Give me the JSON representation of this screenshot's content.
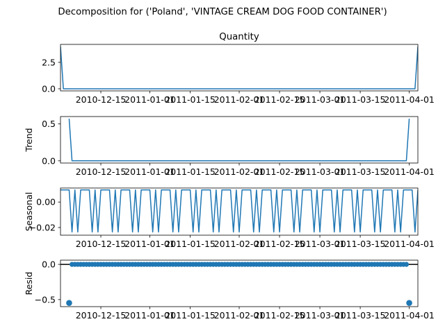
{
  "suptitle": "Decomposition for ('Poland', 'VINTAGE CREAM DOG FOOD CONTAINER')",
  "chart_data": {
    "type": "line",
    "x_range": [
      "2010-12-01",
      "2011-04-04"
    ],
    "x_ticks": [
      {
        "date": "2010-12-15",
        "label": "2010-12-15"
      },
      {
        "date": "2011-01-01",
        "label": "2011-01-01"
      },
      {
        "date": "2011-01-15",
        "label": "2011-01-15"
      },
      {
        "date": "2011-02-01",
        "label": "2011-02-01"
      },
      {
        "date": "2011-02-15",
        "label": "2011-02-15"
      },
      {
        "date": "2011-03-01",
        "label": "2011-03-01"
      },
      {
        "date": "2011-03-15",
        "label": "2011-03-15"
      },
      {
        "date": "2011-04-01",
        "label": "2011-04-01"
      }
    ],
    "line_color": "#1f77b4",
    "panels": [
      {
        "key": "observed",
        "title": "Quantity",
        "ylabel": "",
        "style": "line",
        "ylim": [
          -0.2,
          4.2
        ],
        "yticks": [
          {
            "v": 0.0,
            "label": "0.0"
          },
          {
            "v": 2.5,
            "label": "2.5"
          }
        ],
        "points": [
          [
            "2010-12-01",
            4
          ],
          [
            "2010-12-02",
            0
          ],
          [
            "2011-04-03",
            0
          ],
          [
            "2011-04-04",
            4
          ]
        ]
      },
      {
        "key": "trend",
        "title": "",
        "ylabel": "Trend",
        "style": "line",
        "ylim": [
          -0.03,
          0.6
        ],
        "yticks": [
          {
            "v": 0.0,
            "label": "0.0"
          },
          {
            "v": 0.5,
            "label": "0.5"
          }
        ],
        "points": [
          [
            "2010-12-04",
            0.571
          ],
          [
            "2010-12-05",
            0
          ],
          [
            "2011-03-31",
            0
          ],
          [
            "2011-04-01",
            0.571
          ]
        ]
      },
      {
        "key": "seasonal",
        "title": "",
        "ylabel": "Seasonal",
        "style": "line",
        "ylim": [
          -0.026,
          0.011
        ],
        "yticks": [
          {
            "v": 0.0,
            "label": "0.00"
          },
          {
            "v": -0.02,
            "label": "−0.02"
          }
        ],
        "period_days": 7,
        "weekly_pattern": [
          0.0095,
          0.0095,
          0.0095,
          0.0095,
          -0.0235,
          0.0095,
          -0.0235
        ],
        "x_start": "2010-12-01",
        "x_end": "2011-04-04"
      },
      {
        "key": "resid",
        "title": "",
        "ylabel": "Resid",
        "style": "scatter",
        "ylim": [
          -0.6,
          0.06
        ],
        "yticks": [
          {
            "v": 0.0,
            "label": "0.0"
          },
          {
            "v": -0.5,
            "label": "−0.5"
          }
        ],
        "baseline": 0,
        "points": [
          [
            "2010-12-04",
            -0.548
          ],
          [
            "2011-04-01",
            -0.548
          ]
        ],
        "zero_range": [
          "2010-12-05",
          "2011-03-31"
        ]
      }
    ]
  }
}
